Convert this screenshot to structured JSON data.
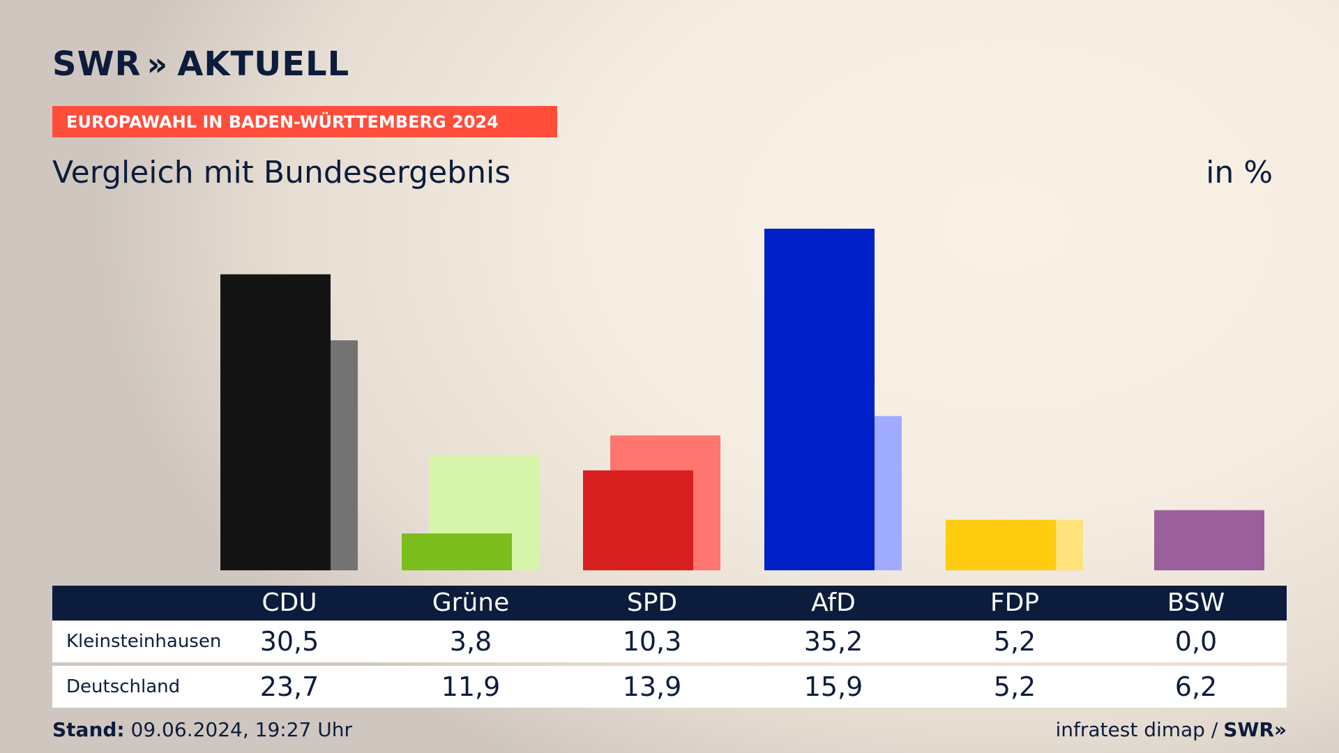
{
  "header": {
    "logo_text": "SWR",
    "logo_chevrons": "»",
    "logo_suffix": "AKTUELL",
    "banner": "EUROPAWAHL IN BADEN-WÜRTTEMBERG 2024",
    "subtitle": "Vergleich mit Bundesergebnis",
    "unit": "in %"
  },
  "chart_data": {
    "type": "bar",
    "categories": [
      "CDU",
      "Grüne",
      "SPD",
      "AfD",
      "FDP",
      "BSW"
    ],
    "series": [
      {
        "name": "Kleinsteinhausen",
        "values": [
          30.5,
          3.8,
          10.3,
          35.2,
          5.2,
          0.0
        ]
      },
      {
        "name": "Deutschland",
        "values": [
          23.7,
          11.9,
          13.9,
          15.9,
          5.2,
          6.2
        ]
      }
    ],
    "colors_primary": [
      "#141414",
      "#7abd1c",
      "#d71f1f",
      "#0020c8",
      "#ffcc10",
      "#9b5f9b"
    ],
    "colors_secondary": [
      "#737373",
      "#d7f5aa",
      "#ff7570",
      "#9fabff",
      "#ffe27a",
      "#9b5f9b"
    ],
    "ylim": [
      0,
      36
    ]
  },
  "table": {
    "headers": [
      "CDU",
      "Grüne",
      "SPD",
      "AfD",
      "FDP",
      "BSW"
    ],
    "rows": [
      {
        "label": "Kleinsteinhausen",
        "values": [
          "30,5",
          "3,8",
          "10,3",
          "35,2",
          "5,2",
          "0,0"
        ]
      },
      {
        "label": "Deutschland",
        "values": [
          "23,7",
          "11,9",
          "13,9",
          "15,9",
          "5,2",
          "6,2"
        ]
      }
    ]
  },
  "footer": {
    "stand_label": "Stand:",
    "stand_value": "09.06.2024, 19:27 Uhr",
    "source": "infratest dimap /",
    "logo": "SWR»"
  }
}
